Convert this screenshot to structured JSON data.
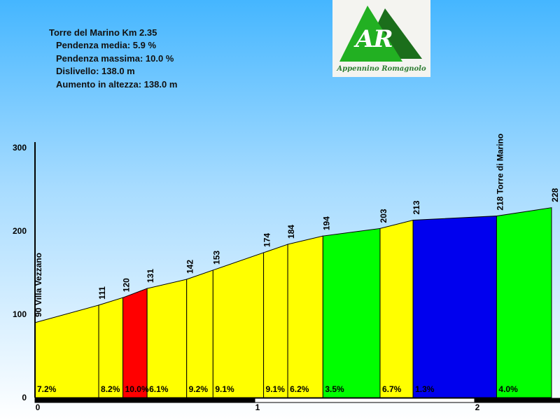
{
  "info": {
    "title": "Torre del Marino  Km 2.35",
    "lines": [
      "Pendenza media: 5.9 %",
      "Pendenza massima: 10.0 %",
      "Dislivello: 138.0 m",
      "Aumento in altezza: 138.0 m"
    ]
  },
  "logo": {
    "mark": "AR",
    "text": "Appennino Romagnolo"
  },
  "colors": {
    "yellow": "#ffff00",
    "red": "#ff0000",
    "green": "#00ff00",
    "blue": "#0000ee"
  },
  "chart_data": {
    "type": "area",
    "title": "Torre del Marino  Km 2.35",
    "xlim": [
      0,
      2.35
    ],
    "ylim": [
      0,
      300
    ],
    "yticks": [
      0,
      100,
      200,
      300
    ],
    "xticks": [
      0,
      1,
      2
    ],
    "points": [
      {
        "x": 0.0,
        "y": 90,
        "label": "90 Villa Vezzano"
      },
      {
        "x": 0.29,
        "y": 111,
        "label": "111"
      },
      {
        "x": 0.4,
        "y": 120,
        "label": "120"
      },
      {
        "x": 0.51,
        "y": 131,
        "label": "131"
      },
      {
        "x": 0.69,
        "y": 142,
        "label": "142"
      },
      {
        "x": 0.81,
        "y": 153,
        "label": "153"
      },
      {
        "x": 1.04,
        "y": 174,
        "label": "174"
      },
      {
        "x": 1.15,
        "y": 184,
        "label": "184"
      },
      {
        "x": 1.31,
        "y": 194,
        "label": "194"
      },
      {
        "x": 1.57,
        "y": 203,
        "label": "203"
      },
      {
        "x": 1.72,
        "y": 213,
        "label": "213"
      },
      {
        "x": 2.1,
        "y": 218,
        "label": "218 Torre di Marino"
      },
      {
        "x": 2.35,
        "y": 228,
        "label": "228"
      }
    ],
    "segments": [
      {
        "grade": "7.2%",
        "color": "yellow"
      },
      {
        "grade": "8.2%",
        "color": "yellow"
      },
      {
        "grade": "10.0%",
        "color": "red"
      },
      {
        "grade": "6.1%",
        "color": "yellow"
      },
      {
        "grade": "9.2%",
        "color": "yellow"
      },
      {
        "grade": "9.1%",
        "color": "yellow"
      },
      {
        "grade": "9.1%",
        "color": "yellow"
      },
      {
        "grade": "6.2%",
        "color": "yellow"
      },
      {
        "grade": "3.5%",
        "color": "green"
      },
      {
        "grade": "6.7%",
        "color": "yellow"
      },
      {
        "grade": "1.3%",
        "color": "blue"
      },
      {
        "grade": "4.0%",
        "color": "green"
      }
    ]
  }
}
